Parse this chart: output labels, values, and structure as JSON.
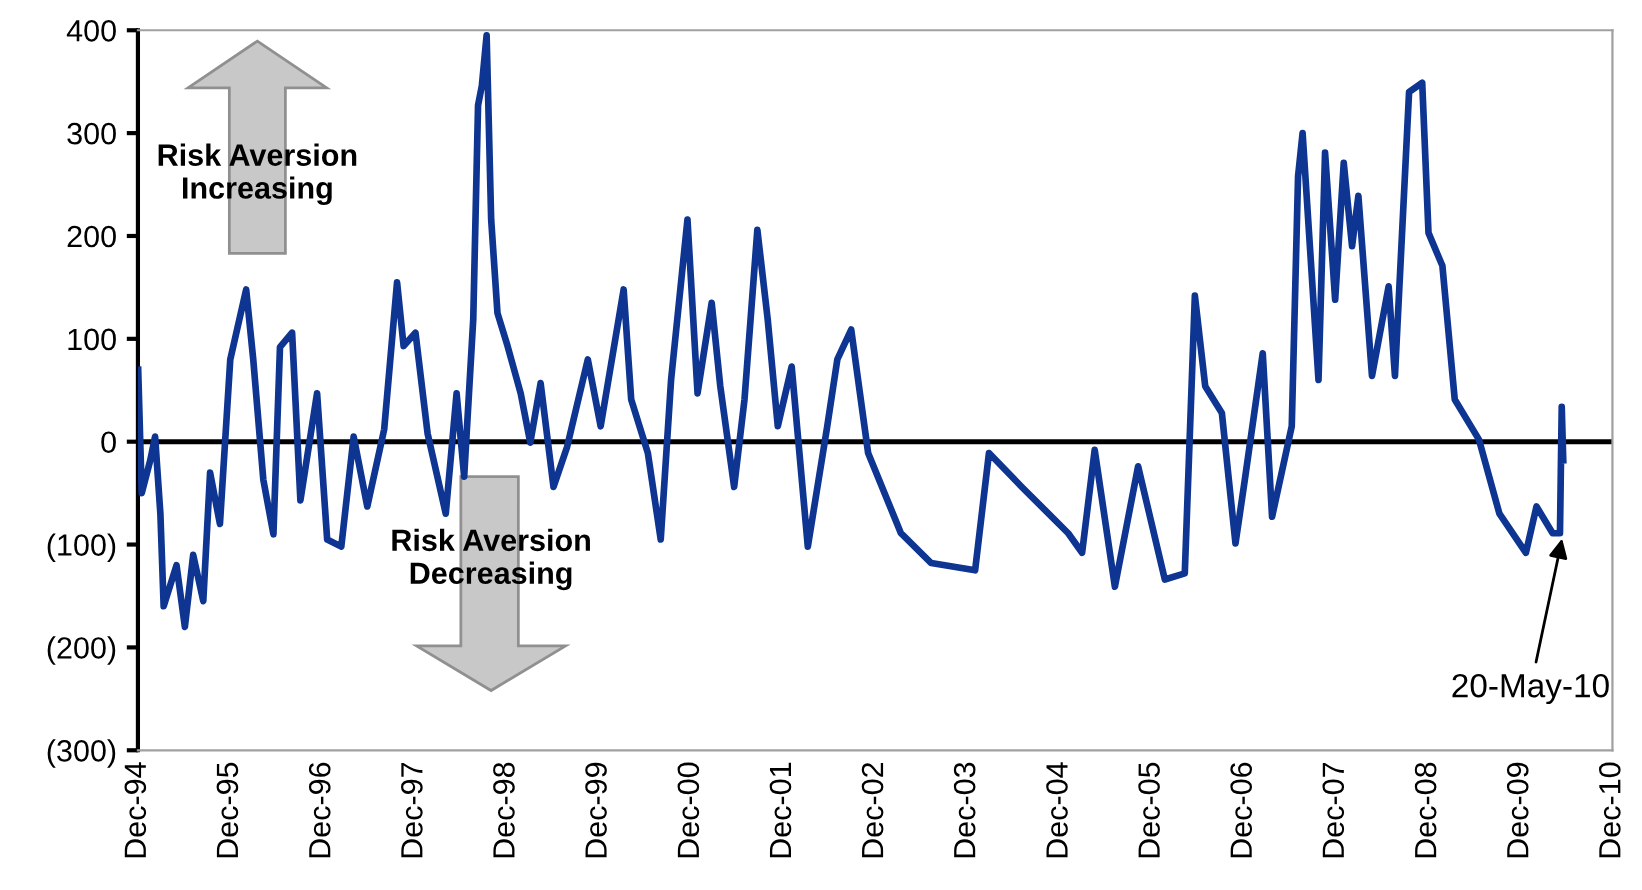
{
  "chart_data": {
    "type": "line",
    "annotations": [
      "Risk Aversion\nIncreasing",
      "Risk Aversion\nDecreasing",
      {
        "text": "20-May-10",
        "x": "2010-05-20",
        "y": -89
      }
    ],
    "xlim": [
      "1994-12-01",
      "2010-12-01"
    ],
    "xticks": [
      {
        "value": "1994-12-01",
        "label": "Dec-94"
      },
      {
        "value": "1995-12-01",
        "label": "Dec-95"
      },
      {
        "value": "1996-12-01",
        "label": "Dec-96"
      },
      {
        "value": "1997-12-01",
        "label": "Dec-97"
      },
      {
        "value": "1998-12-01",
        "label": "Dec-98"
      },
      {
        "value": "1999-12-01",
        "label": "Dec-99"
      },
      {
        "value": "2000-12-01",
        "label": "Dec-00"
      },
      {
        "value": "2001-12-01",
        "label": "Dec-01"
      },
      {
        "value": "2002-12-01",
        "label": "Dec-02"
      },
      {
        "value": "2003-12-01",
        "label": "Dec-03"
      },
      {
        "value": "2004-12-01",
        "label": "Dec-04"
      },
      {
        "value": "2005-12-01",
        "label": "Dec-05"
      },
      {
        "value": "2006-12-01",
        "label": "Dec-06"
      },
      {
        "value": "2007-12-01",
        "label": "Dec-07"
      },
      {
        "value": "2008-12-01",
        "label": "Dec-08"
      },
      {
        "value": "2009-12-01",
        "label": "Dec-09"
      },
      {
        "value": "2010-12-01",
        "label": "Dec-10"
      }
    ],
    "ylim": [
      -300,
      400
    ],
    "yticks": [
      {
        "value": -300,
        "label": "(300)"
      },
      {
        "value": -200,
        "label": "(200)"
      },
      {
        "value": -100,
        "label": "(100)"
      },
      0,
      100,
      200,
      300,
      400
    ],
    "ref_lines": [
      {
        "axis": "y",
        "value": 0,
        "label": null,
        "color": "#000000"
      }
    ],
    "grid": false,
    "marker": "none",
    "line_style": "solid",
    "series": [
      {
        "color": "#0d3591",
        "x": [
          "1994-12-02",
          "1994-12-16",
          "1995-01-19",
          "1995-02-07",
          "1995-02-28",
          "1995-03-13",
          "1995-05-03",
          "1995-06-05",
          "1995-07-08",
          "1995-08-17",
          "1995-09-13",
          "1995-10-22",
          "1995-12-02",
          "1996-02-03",
          "1996-03-02",
          "1996-04-11",
          "1996-05-21",
          "1996-06-16",
          "1996-08-03",
          "1996-09-05",
          "1996-11-10",
          "1996-12-20",
          "1997-02-14",
          "1997-04-04",
          "1997-05-28",
          "1997-08-03",
          "1997-09-23",
          "1997-10-19",
          "1997-12-05",
          "1998-01-22",
          "1998-04-04",
          "1998-05-17",
          "1998-06-16",
          "1998-07-22",
          "1998-08-10",
          "1998-08-25",
          "1998-09-13",
          "1998-10-01",
          "1998-10-26",
          "1998-12-05",
          "1999-01-26",
          "1999-03-05",
          "1999-04-15",
          "1999-06-05",
          "1999-07-29",
          "1999-10-19",
          "1999-12-09",
          "2000-03-09",
          "2000-04-08",
          "2000-06-13",
          "2000-08-03",
          "2000-09-13",
          "2000-11-17",
          "2000-12-27",
          "2001-02-21",
          "2001-03-27",
          "2001-05-21",
          "2001-07-01",
          "2001-08-21",
          "2001-10-01",
          "2001-11-10",
          "2002-01-04",
          "2002-03-09",
          "2002-05-25",
          "2002-07-04",
          "2002-08-28",
          "2002-11-03",
          "2003-03-13",
          "2003-07-11",
          "2004-01-01",
          "2004-02-25",
          "2004-07-04",
          "2005-01-04",
          "2005-02-28",
          "2005-04-19",
          "2005-07-08",
          "2005-10-08",
          "2006-01-22",
          "2006-04-11",
          "2006-05-21",
          "2006-07-01",
          "2006-09-05",
          "2006-10-29",
          "2006-12-05",
          "2007-02-14",
          "2007-03-23",
          "2007-06-09",
          "2007-07-04",
          "2007-07-22",
          "2007-09-23",
          "2007-10-19",
          "2007-11-28",
          "2008-01-01",
          "2008-02-03",
          "2008-02-28",
          "2008-04-22",
          "2008-06-27",
          "2008-07-22",
          "2008-09-16",
          "2008-11-07",
          "2008-12-02",
          "2009-01-26",
          "2009-03-16",
          "2009-06-20",
          "2009-09-09",
          "2009-12-23",
          "2010-02-03",
          "2010-04-08",
          "2010-05-07",
          "2010-05-14",
          "2010-05-20"
        ],
        "values": [
          70,
          -50,
          -18,
          5,
          -70,
          -160,
          -120,
          -180,
          -110,
          -155,
          -30,
          -80,
          80,
          148,
          80,
          -37,
          -90,
          92,
          106,
          -57,
          47,
          -95,
          -102,
          5,
          -63,
          12,
          155,
          93,
          106,
          8,
          -70,
          47,
          -34,
          119,
          327,
          346,
          395,
          216,
          125,
          93,
          47,
          -1,
          57,
          -44,
          -5,
          80,
          15,
          148,
          41,
          -11,
          -95,
          60,
          216,
          47,
          135,
          54,
          -44,
          41,
          206,
          119,
          15,
          73,
          -102,
          15,
          80,
          109,
          -11,
          -89,
          -118,
          -125,
          -11,
          -44,
          -89,
          -108,
          -8,
          -141,
          -24,
          -134,
          -128,
          142,
          54,
          28,
          -99,
          -37,
          86,
          -73,
          15,
          258,
          300,
          60,
          281,
          138,
          271,
          190,
          239,
          64,
          151,
          64,
          340,
          349,
          203,
          171,
          41,
          2,
          -70,
          -108,
          -63,
          -89,
          -89,
          34,
          -18
        ]
      }
    ]
  }
}
